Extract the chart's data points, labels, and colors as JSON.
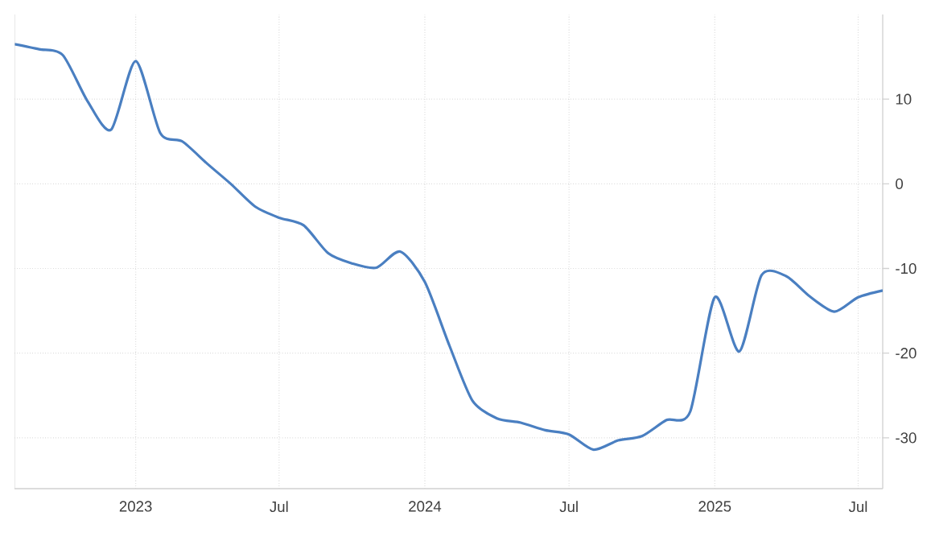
{
  "chart_data": {
    "type": "line",
    "x": [
      "2022-08",
      "2022-09",
      "2022-10",
      "2022-11",
      "2022-12",
      "2023-01",
      "2023-02",
      "2023-03",
      "2023-04",
      "2023-05",
      "2023-06",
      "2023-07",
      "2023-08",
      "2023-09",
      "2023-10",
      "2023-11",
      "2023-12",
      "2024-01",
      "2024-02",
      "2024-03",
      "2024-04",
      "2024-05",
      "2024-06",
      "2024-07",
      "2024-08",
      "2024-09",
      "2024-10",
      "2024-11",
      "2024-12",
      "2025-01",
      "2025-02",
      "2025-03",
      "2025-04",
      "2025-05",
      "2025-06",
      "2025-07",
      "2025-08"
    ],
    "series": [
      {
        "color": "#4a7fc1",
        "values": [
          16.5,
          15.9,
          15.2,
          9.8,
          6.4,
          14.5,
          6.0,
          5.0,
          2.4,
          0.0,
          -2.7,
          -4.0,
          -4.9,
          -8.2,
          -9.4,
          -9.9,
          -8.0,
          -11.6,
          -19.1,
          -25.6,
          -27.7,
          -28.2,
          -29.1,
          -29.6,
          -31.4,
          -30.3,
          -29.8,
          -27.9,
          -26.9,
          -13.4,
          -19.8,
          -10.8,
          -10.9,
          -13.3,
          -15.1,
          -13.4,
          -12.6
        ]
      }
    ],
    "xlim": [
      "2022-08",
      "2025-08"
    ],
    "ylim": [
      -36,
      20
    ],
    "xticks": [
      {
        "value": "2023-01",
        "label": "2023"
      },
      {
        "value": "2023-07",
        "label": "Jul"
      },
      {
        "value": "2024-01",
        "label": "2024"
      },
      {
        "value": "2024-07",
        "label": "Jul"
      },
      {
        "value": "2025-01",
        "label": "2025"
      },
      {
        "value": "2025-07",
        "label": "Jul"
      }
    ],
    "yticks": [
      -30,
      -20,
      -10,
      0,
      10
    ],
    "grid": true,
    "marker": "none",
    "line_style": "solid"
  }
}
